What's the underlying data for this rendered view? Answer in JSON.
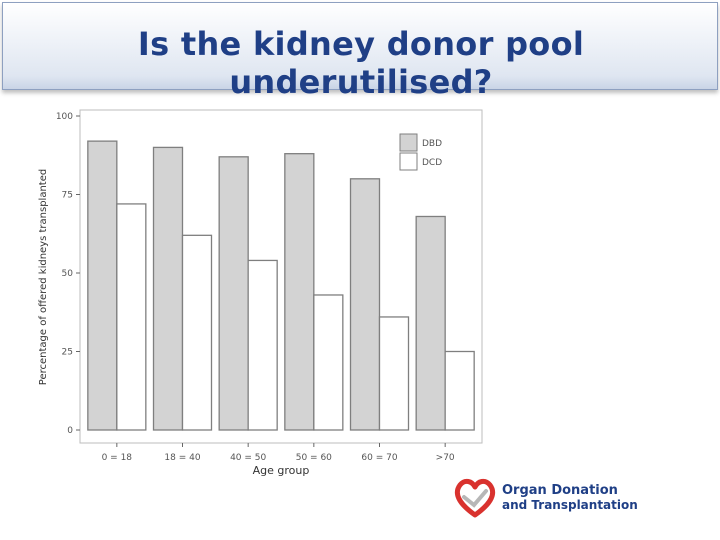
{
  "slide": {
    "title": "Is the kidney donor pool underutilised?"
  },
  "logo": {
    "line1": "Organ Donation",
    "line2": "and Transplantation"
  },
  "colors": {
    "dbd": "#d3d3d3",
    "dcd": "#ffffff",
    "title": "#1f3f86",
    "logo_red": "#d9322e"
  },
  "chart_data": {
    "type": "bar",
    "categories": [
      "0 = 18",
      "18 = 40",
      "40 = 50",
      "50 = 60",
      "60 = 70",
      ">70"
    ],
    "series": [
      {
        "name": "DBD",
        "values": [
          92,
          90,
          87,
          88,
          80,
          68
        ]
      },
      {
        "name": "DCD",
        "values": [
          72,
          62,
          54,
          43,
          36,
          25
        ]
      }
    ],
    "xlabel": "Age group",
    "ylabel": "Percentage of offered kidneys transplanted",
    "ylim": [
      0,
      100
    ],
    "yticks": [
      0,
      25,
      50,
      75,
      100
    ],
    "legend_position": "top-right",
    "grid": false
  }
}
